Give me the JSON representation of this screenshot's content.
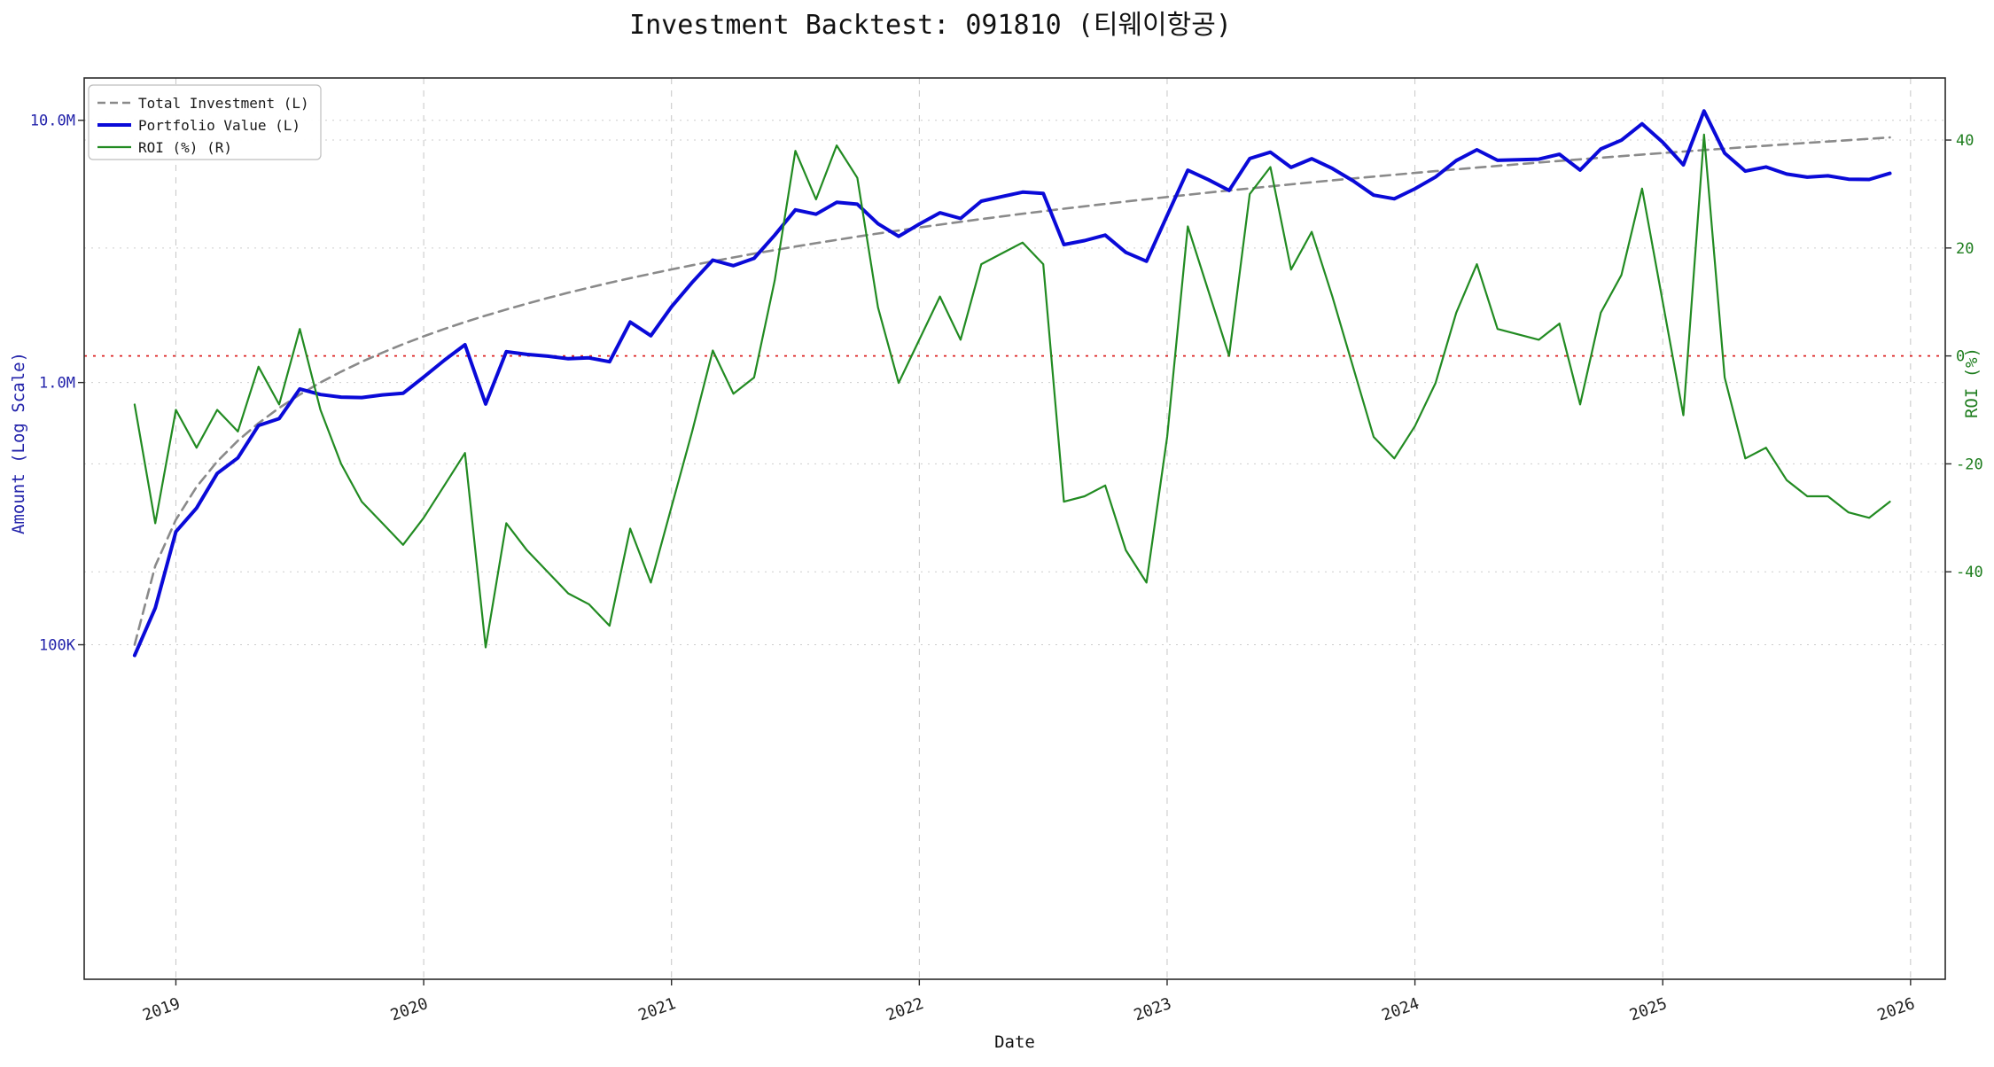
{
  "chart_data": {
    "type": "line",
    "title": "Investment Backtest: 091810 (티웨이항공)",
    "xlabel": "Date",
    "ylabel_left": "Amount (Log Scale)",
    "ylabel_right": "ROI (%)",
    "legend_position": "top-left",
    "grid": true,
    "x_tick_labels": [
      "2019",
      "2020",
      "2021",
      "2022",
      "2023",
      "2024",
      "2025",
      "2026"
    ],
    "x_range_years": [
      2018.63,
      2026.14
    ],
    "left_axis": {
      "scale": "log",
      "color": "#2222aa",
      "range": [
        5300,
        14500000
      ],
      "ticks": [
        {
          "label": "10.0M",
          "value": 10000000
        },
        {
          "label": "1.0M",
          "value": 1000000
        },
        {
          "label": "100K",
          "value": 100000
        }
      ]
    },
    "right_axis": {
      "color": "#1e7d1e",
      "range": [
        -115.5,
        51.5
      ],
      "ticks": [
        40,
        20,
        0,
        -20,
        -40
      ]
    },
    "zero_line": {
      "value": 0,
      "color": "#dd2222",
      "style": "dotted"
    },
    "monthly_contribution": 100000,
    "months": [
      "2018-10",
      "2018-11",
      "2018-12",
      "2019-01",
      "2019-02",
      "2019-03",
      "2019-04",
      "2019-05",
      "2019-06",
      "2019-07",
      "2019-08",
      "2019-09",
      "2019-10",
      "2019-11",
      "2019-12",
      "2020-01",
      "2020-02",
      "2020-03",
      "2020-04",
      "2020-05",
      "2020-06",
      "2020-07",
      "2020-08",
      "2020-09",
      "2020-10",
      "2020-11",
      "2020-12",
      "2021-01",
      "2021-02",
      "2021-03",
      "2021-04",
      "2021-05",
      "2021-06",
      "2021-07",
      "2021-08",
      "2021-09",
      "2021-10",
      "2021-11",
      "2021-12",
      "2022-01",
      "2022-02",
      "2022-03",
      "2022-04",
      "2022-05",
      "2022-06",
      "2022-07",
      "2022-08",
      "2022-09",
      "2022-10",
      "2022-11",
      "2022-12",
      "2023-01",
      "2023-02",
      "2023-03",
      "2023-04",
      "2023-05",
      "2023-06",
      "2023-07",
      "2023-08",
      "2023-09",
      "2023-10",
      "2023-11",
      "2023-12",
      "2024-01",
      "2024-02",
      "2024-03",
      "2024-04",
      "2024-05",
      "2024-06",
      "2024-07",
      "2024-08",
      "2024-09",
      "2024-10",
      "2024-11",
      "2024-12",
      "2025-01",
      "2025-02",
      "2025-03",
      "2025-04",
      "2025-05",
      "2025-06",
      "2025-07",
      "2025-08",
      "2025-09",
      "2025-10",
      "2025-11"
    ],
    "series": [
      {
        "name": "Total Investment (L)",
        "axis": "left",
        "color": "#8a8a8a",
        "style": "dashed",
        "width": 2.6,
        "values": [
          100000,
          200000,
          300000,
          400000,
          500000,
          600000,
          700000,
          800000,
          900000,
          1000000,
          1100000,
          1200000,
          1300000,
          1400000,
          1500000,
          1600000,
          1700000,
          1800000,
          1900000,
          2000000,
          2100000,
          2200000,
          2300000,
          2400000,
          2500000,
          2600000,
          2700000,
          2800000,
          2900000,
          3000000,
          3100000,
          3200000,
          3300000,
          3400000,
          3500000,
          3600000,
          3700000,
          3800000,
          3900000,
          4000000,
          4100000,
          4200000,
          4300000,
          4400000,
          4500000,
          4600000,
          4700000,
          4800000,
          4900000,
          5000000,
          5100000,
          5200000,
          5300000,
          5400000,
          5500000,
          5600000,
          5700000,
          5800000,
          5900000,
          6000000,
          6100000,
          6200000,
          6300000,
          6400000,
          6500000,
          6600000,
          6700000,
          6800000,
          6900000,
          7000000,
          7100000,
          7200000,
          7300000,
          7400000,
          7500000,
          7600000,
          7700000,
          7800000,
          7900000,
          8000000,
          8100000,
          8200000,
          8300000,
          8400000,
          8500000,
          8600000
        ]
      },
      {
        "name": "Portfolio Value (L)",
        "axis": "left",
        "color": "#0a0ad8",
        "style": "solid",
        "width": 4,
        "values": [
          91000,
          138000,
          270000,
          332000,
          450000,
          516000,
          686000,
          728000,
          945000,
          900000,
          880000,
          876000,
          897000,
          910000,
          1050000,
          1216000,
          1394000,
          828000,
          1311000,
          1280000,
          1260000,
          1232000,
          1242000,
          1200000,
          1700000,
          1508000,
          1944000,
          2408000,
          2929000,
          2790000,
          2976000,
          3648000,
          4554000,
          4386000,
          4865000,
          4788000,
          4033000,
          3610000,
          4017000,
          4440000,
          4223000,
          4914000,
          5117000,
          5324000,
          5265000,
          3358000,
          3478000,
          3648000,
          3136000,
          2900000,
          4335000,
          6448000,
          5936000,
          5400000,
          7150000,
          7560000,
          6612000,
          7134000,
          6549000,
          5880000,
          5185000,
          5022000,
          5481000,
          6080000,
          7020000,
          7722000,
          7035000,
          7072000,
          7107000,
          7420000,
          6461000,
          7776000,
          8395000,
          9694000,
          8250000,
          6764000,
          10857000,
          7488000,
          6399000,
          6640000,
          6237000,
          6068000,
          6142000,
          5964000,
          5950000,
          6278000
        ]
      },
      {
        "name": "ROI (%) (R)",
        "axis": "right",
        "color": "#228B22",
        "style": "solid",
        "width": 2.2,
        "values": [
          -9,
          -31,
          -10,
          -17,
          -10,
          -14,
          -2,
          -9,
          5,
          -10,
          -20,
          -27,
          -31,
          -35,
          -30,
          -24,
          -18,
          -54,
          -31,
          -36,
          -40,
          -44,
          -46,
          -50,
          -32,
          -42,
          -28,
          -14,
          1,
          -7,
          -4,
          14,
          38,
          29,
          39,
          33,
          9,
          -5,
          3,
          11,
          3,
          17,
          19,
          21,
          17,
          -27,
          -26,
          -24,
          -36,
          -42,
          -15,
          24,
          12,
          0,
          30,
          35,
          16,
          23,
          11,
          -2,
          -15,
          -19,
          -13,
          -5,
          8,
          17,
          5,
          4,
          3,
          6,
          -9,
          8,
          15,
          31,
          10,
          -11,
          41,
          -4,
          -19,
          -17,
          -23,
          -26,
          -26,
          -29,
          -30,
          -27
        ]
      }
    ]
  }
}
